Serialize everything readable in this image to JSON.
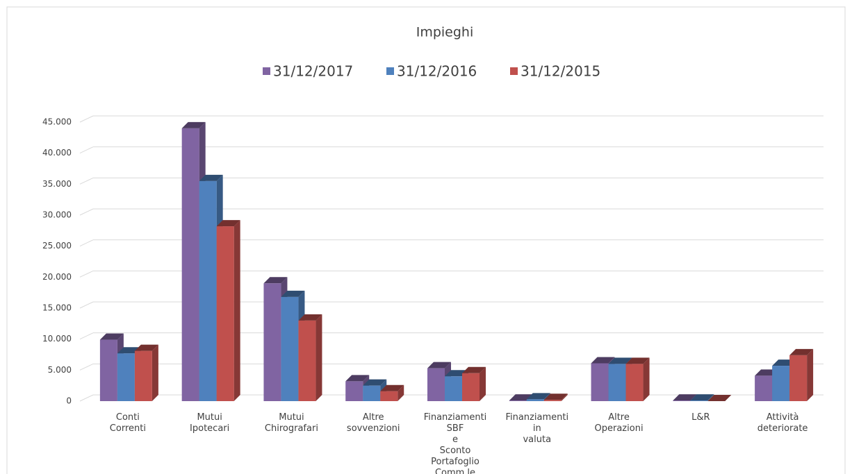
{
  "chart_data": {
    "type": "bar3d",
    "title": "Impieghi",
    "categories": [
      "Conti Correnti",
      "Mutui Ipotecari",
      "Mutui Chirografari",
      "Altre sovvenzioni",
      "Finanziamenti SBF e Sconto Portafoglio Comm.le",
      "Finanziamenti in valuta",
      "Altre Operazioni",
      "L&R",
      "Attività deteriorate"
    ],
    "series": [
      {
        "name": "31/12/2017",
        "color": "#8064a2",
        "values": [
          9900,
          44000,
          19000,
          3200,
          5300,
          100,
          6100,
          100,
          4100
        ]
      },
      {
        "name": "31/12/2016",
        "color": "#4f81bd",
        "values": [
          7700,
          35500,
          16800,
          2500,
          4000,
          300,
          6000,
          100,
          5700
        ]
      },
      {
        "name": "31/12/2015",
        "color": "#c0504d",
        "values": [
          8100,
          28200,
          13000,
          1600,
          4500,
          200,
          6000,
          0,
          7400
        ]
      }
    ],
    "ylim": [
      0,
      45000
    ],
    "yticks": [
      0,
      {
        "value": 5000,
        "label": "5.000"
      },
      {
        "value": 10000,
        "label": "10.000"
      },
      {
        "value": 15000,
        "label": "15.000"
      },
      {
        "value": 20000,
        "label": "20.000"
      },
      {
        "value": 25000,
        "label": "25.000"
      },
      {
        "value": 30000,
        "label": "30.000"
      },
      {
        "value": 35000,
        "label": "35.000"
      },
      {
        "value": 40000,
        "label": "40.000"
      },
      {
        "value": 45000,
        "label": "45.000"
      }
    ],
    "grid": true,
    "legend": "top"
  }
}
